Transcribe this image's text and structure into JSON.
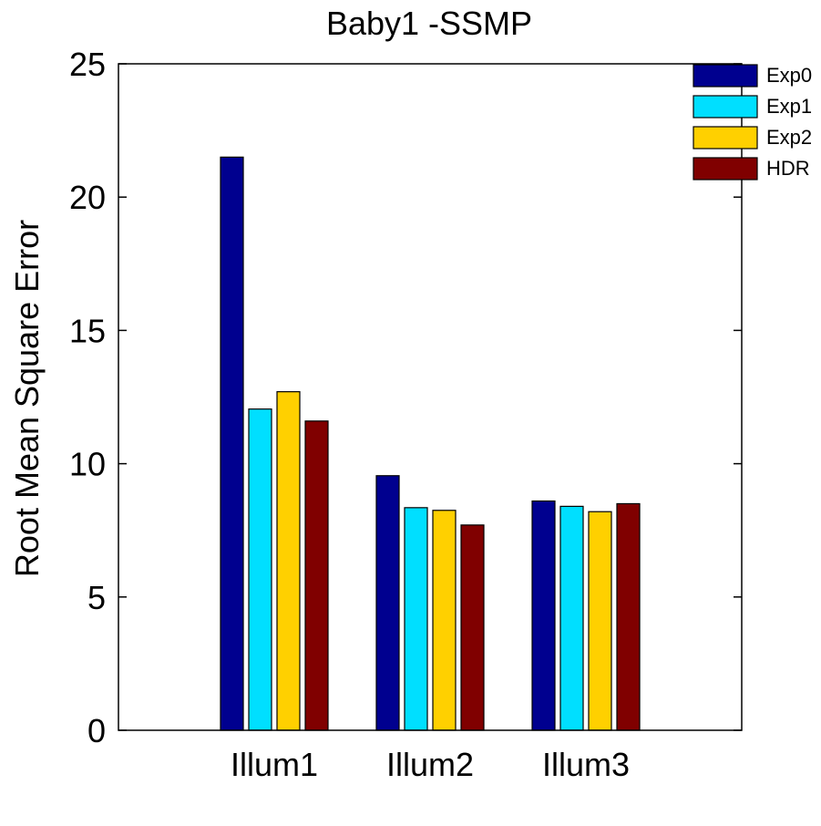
{
  "chart_data": {
    "type": "bar",
    "title": "Baby1 -SSMP",
    "xlabel": "",
    "ylabel": "Root Mean Square Error",
    "categories": [
      "Illum1",
      "Illum2",
      "Illum3"
    ],
    "ylim": [
      0,
      25
    ],
    "yticks": [
      0,
      5,
      10,
      15,
      20,
      25
    ],
    "ytick_labels": [
      "0",
      "5",
      "10",
      "15",
      "20",
      "25"
    ],
    "grid": false,
    "legend_position": "top-right",
    "series": [
      {
        "name": "Exp0",
        "color": "#00008F",
        "values": [
          21.5,
          9.55,
          8.6
        ]
      },
      {
        "name": "Exp1",
        "color": "#00DFFF",
        "values": [
          12.05,
          8.35,
          8.4
        ]
      },
      {
        "name": "Exp2",
        "color": "#FFD000",
        "values": [
          12.7,
          8.25,
          8.2
        ]
      },
      {
        "name": "HDR",
        "color": "#800000",
        "values": [
          11.6,
          7.7,
          8.5
        ]
      }
    ]
  }
}
